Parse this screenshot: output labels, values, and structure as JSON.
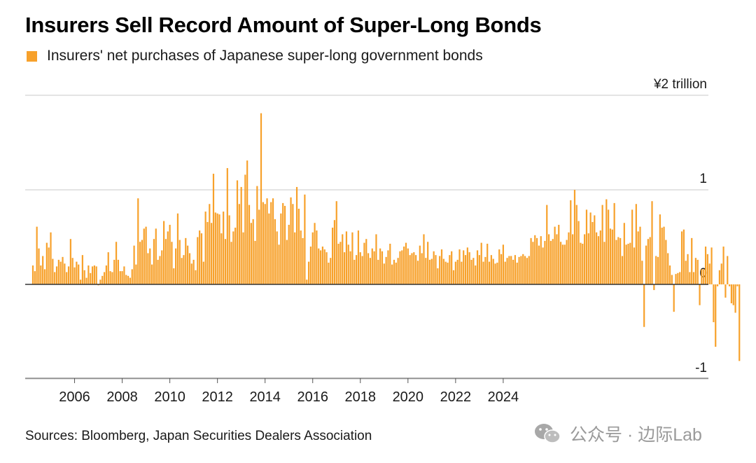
{
  "title": "Insurers Sell Record Amount of Super-Long Bonds",
  "source": "Sources: Bloomberg, Japan Securities Dealers Association",
  "watermark": "公众号 · 边际Lab",
  "colors": {
    "bar": "#f7a12b",
    "grid": "#d4d4d4",
    "zero": "#333333"
  },
  "chart_data": {
    "type": "bar",
    "series": [
      {
        "name": "Insurers' net purchases of Japanese super-long government bonds"
      }
    ],
    "unit_label": "¥2 trillion",
    "y_ticks": [
      {
        "value": 2,
        "label": "¥2 trillion"
      },
      {
        "value": 1,
        "label": "1"
      },
      {
        "value": 0,
        "label": "0"
      },
      {
        "value": -1,
        "label": "-1"
      }
    ],
    "ylim": [
      -1,
      2
    ],
    "x_ticks": [
      "2006",
      "2008",
      "2010",
      "2012",
      "2014",
      "2016",
      "2018",
      "2020",
      "2022",
      "2024"
    ],
    "x_start": "2004-04",
    "values": [
      0.2,
      0.14,
      0.61,
      0.38,
      0.2,
      0.3,
      0.16,
      0.44,
      0.39,
      0.55,
      0.27,
      0.13,
      0.19,
      0.26,
      0.24,
      0.29,
      0.22,
      0.13,
      0.19,
      0.48,
      0.28,
      0.18,
      0.24,
      0.21,
      0.05,
      0.31,
      0.15,
      0.07,
      0.2,
      0.12,
      0.19,
      0.2,
      0.19,
      -0.01,
      0.05,
      0.09,
      0.13,
      0.2,
      0.34,
      0.14,
      0.13,
      0.26,
      0.45,
      0.26,
      0.14,
      0.14,
      0.19,
      0.1,
      0.09,
      0.07,
      0.16,
      0.41,
      0.21,
      0.91,
      0.45,
      0.47,
      0.59,
      0.61,
      0.33,
      0.38,
      0.21,
      0.48,
      0.59,
      0.26,
      0.3,
      0.36,
      0.67,
      0.48,
      0.56,
      0.63,
      0.45,
      0.17,
      0.38,
      0.75,
      0.47,
      0.28,
      0.31,
      0.49,
      0.41,
      0.33,
      0.22,
      0.26,
      0.15,
      0.5,
      0.57,
      0.54,
      0.24,
      0.77,
      0.66,
      0.85,
      0.65,
      1.17,
      0.76,
      0.75,
      0.74,
      0.54,
      0.77,
      0.48,
      1.23,
      0.73,
      0.45,
      0.56,
      0.6,
      1.1,
      0.85,
      1.03,
      0.55,
      1.16,
      1.31,
      0.84,
      0.65,
      0.69,
      0.46,
      1.04,
      0.79,
      1.81,
      0.87,
      0.85,
      0.91,
      0.75,
      0.87,
      0.91,
      0.69,
      0.56,
      0.42,
      0.75,
      0.86,
      0.83,
      0.47,
      0.63,
      0.92,
      0.85,
      0.55,
      1.03,
      0.8,
      0.57,
      0.49,
      0.95,
      0.05,
      0.24,
      0.4,
      0.55,
      0.65,
      0.57,
      0.38,
      0.36,
      0.4,
      0.37,
      0.34,
      0.23,
      0.28,
      0.6,
      0.68,
      0.88,
      0.43,
      0.45,
      0.53,
      0.34,
      0.56,
      0.42,
      0.35,
      0.55,
      0.26,
      0.31,
      0.57,
      0.34,
      0.3,
      0.44,
      0.48,
      0.33,
      0.28,
      0.38,
      0.35,
      0.53,
      0.26,
      0.38,
      0.35,
      0.22,
      0.29,
      0.36,
      0.43,
      0.21,
      0.26,
      0.23,
      0.28,
      0.35,
      0.36,
      0.4,
      0.44,
      0.38,
      0.31,
      0.33,
      0.34,
      0.31,
      0.25,
      0.41,
      0.33,
      0.53,
      0.28,
      0.45,
      0.26,
      0.27,
      0.35,
      0.31,
      0.17,
      0.3,
      0.37,
      0.27,
      0.24,
      0.23,
      0.31,
      0.35,
      0.15,
      0.24,
      0.26,
      0.37,
      0.24,
      0.36,
      0.31,
      0.39,
      0.34,
      0.26,
      0.28,
      0.2,
      0.36,
      0.31,
      0.44,
      0.24,
      0.29,
      0.43,
      0.24,
      0.31,
      0.27,
      0.22,
      0.23,
      0.37,
      0.32,
      0.42,
      0.24,
      0.28,
      0.3,
      0.3,
      0.26,
      0.31,
      0.23,
      0.29,
      0.3,
      0.32,
      0.3,
      0.28,
      0.3,
      0.49,
      0.45,
      0.52,
      0.49,
      0.41,
      0.51,
      0.39,
      0.46,
      0.84,
      0.53,
      0.46,
      0.48,
      0.61,
      0.53,
      0.63,
      0.45,
      0.42,
      0.42,
      0.47,
      0.55,
      0.89,
      0.53,
      1.0,
      0.84,
      0.67,
      0.44,
      0.43,
      0.53,
      0.79,
      0.54,
      0.76,
      0.66,
      0.73,
      0.55,
      0.51,
      0.57,
      0.84,
      0.45,
      0.9,
      0.79,
      0.59,
      0.58,
      0.86,
      0.47,
      0.5,
      0.49,
      0.3,
      0.65,
      0.42,
      0.43,
      0.44,
      0.79,
      0.39,
      0.85,
      0.56,
      0.61,
      0.25,
      -0.45,
      0.41,
      0.48,
      0.5,
      0.88,
      -0.06,
      0.3,
      0.29,
      0.74,
      0.6,
      0.61,
      0.47,
      0.33,
      0.2,
      0.1,
      -0.29,
      0.11,
      0.12,
      0.13,
      0.56,
      0.58,
      0.25,
      0.32,
      0.13,
      0.49,
      0.13,
      0.28,
      0.26,
      -0.22,
      0.16,
      0.16,
      0.4,
      0.32,
      0.22,
      0.39,
      -0.4,
      -0.66,
      -0.02,
      0.15,
      0.22,
      0.4,
      -0.14,
      0.3,
      -0.02,
      -0.2,
      -0.22,
      -0.3,
      -0.02,
      -0.81
    ]
  }
}
